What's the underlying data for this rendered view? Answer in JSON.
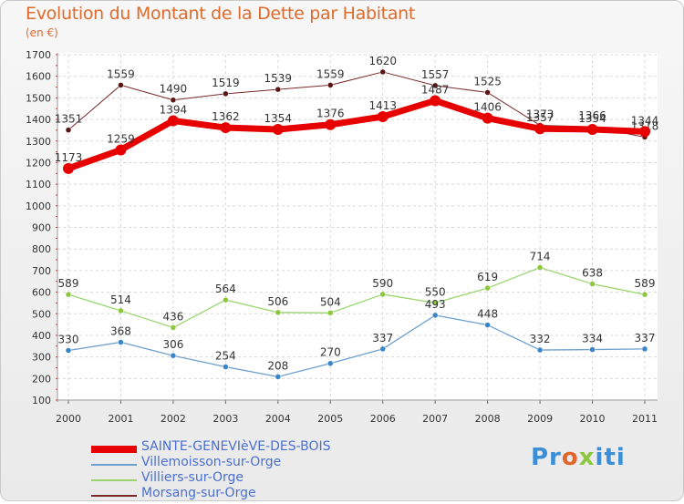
{
  "title": "Evolution du Montant de la Dette par Habitant",
  "subtitle": "(en €)",
  "logo": {
    "p": "Pr",
    "o": "o",
    "x": "x",
    "rest": "iti"
  },
  "chart_data": {
    "type": "line",
    "x": [
      "2000",
      "2001",
      "2002",
      "2003",
      "2004",
      "2005",
      "2006",
      "2007",
      "2008",
      "2009",
      "2010",
      "2011"
    ],
    "ylim": [
      100,
      1700
    ],
    "yticks": [
      100,
      200,
      300,
      400,
      500,
      600,
      700,
      800,
      900,
      1000,
      1100,
      1200,
      1300,
      1400,
      1500,
      1600,
      1700
    ],
    "grid": true,
    "legend_position": "bottom-left",
    "series": [
      {
        "name": "Morsang-sur-Orge",
        "color": "#7a2a2a",
        "point_color": "#5a1515",
        "width": 1,
        "values": [
          1351,
          1559,
          1490,
          1519,
          1539,
          1559,
          1620,
          1557,
          1525,
          1373,
          1366,
          1318
        ],
        "labels": [
          "1351",
          "1559",
          "1490",
          "1519",
          "1539",
          "1559",
          "1620",
          "1557",
          "1525",
          "1373",
          "1366",
          "1318"
        ]
      },
      {
        "name": "Villiers-sur-Orge",
        "color": "#9ad570",
        "point_color": "#8dc63f",
        "width": 1.3,
        "values": [
          589,
          514,
          436,
          564,
          506,
          504,
          590,
          550,
          619,
          714,
          638,
          589
        ],
        "labels": [
          "589",
          "514",
          "436",
          "564",
          "506",
          "504",
          "590",
          "550",
          "619",
          "714",
          "638",
          "589"
        ]
      },
      {
        "name": "Villemoisson-sur-Orge",
        "color": "#6fa1cf",
        "point_color": "#3a84c8",
        "width": 1.3,
        "values": [
          330,
          368,
          306,
          254,
          208,
          270,
          337,
          493,
          448,
          332,
          334,
          337
        ],
        "labels": [
          "330",
          "368",
          "306",
          "254",
          "208",
          "270",
          "337",
          "493",
          "448",
          "332",
          "334",
          "337"
        ]
      },
      {
        "name": "SAINTE-GENEVIèVE-DES-BOIS",
        "color": "#e60000",
        "point_color": "#e60000",
        "width": 7,
        "values": [
          1173,
          1259,
          1394,
          1362,
          1354,
          1376,
          1413,
          1487,
          1406,
          1357,
          1354,
          1344
        ],
        "labels": [
          "1173",
          "1259",
          "1394",
          "1362",
          "1354",
          "1376",
          "1413",
          "1487",
          "1406",
          "1357",
          "1354",
          "1344"
        ]
      }
    ],
    "legend_order": [
      3,
      2,
      1,
      0
    ]
  }
}
